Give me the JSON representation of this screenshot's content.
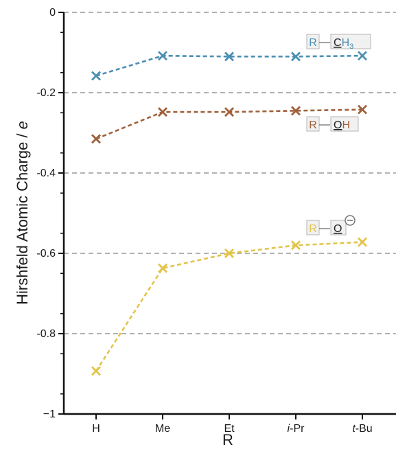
{
  "chart_data": {
    "type": "line",
    "categories": [
      "H",
      "Me",
      "Et",
      "i-Pr",
      "t-Bu"
    ],
    "category_labels": [
      {
        "prefix": "",
        "text": "H"
      },
      {
        "prefix": "",
        "text": "Me"
      },
      {
        "prefix": "",
        "text": "Et"
      },
      {
        "prefix": "i",
        "text": "-Pr"
      },
      {
        "prefix": "t",
        "text": "-Bu"
      }
    ],
    "ylim": [
      -1,
      0
    ],
    "yticks": [
      0,
      -0.2,
      -0.4,
      -0.6,
      -0.8,
      -1
    ],
    "ytick_labels": [
      "0",
      "-0.2",
      "-0.4",
      "-0.6",
      "-0.8",
      "−1"
    ],
    "xlabel": "R",
    "ylabel_main": "Hirshfeld Atomic Charge / ",
    "ylabel_unit": "e",
    "grid": "horizontal-dashed",
    "series": [
      {
        "key": "ch3",
        "values": [
          -0.158,
          -0.108,
          -0.11,
          -0.11,
          -0.108
        ],
        "color": "#4a8fb3",
        "label_parts": {
          "r": "R",
          "bond": "—",
          "atom": "C",
          "rest": "H",
          "sub": "3"
        }
      },
      {
        "key": "oh",
        "values": [
          -0.315,
          -0.248,
          -0.248,
          -0.245,
          -0.242
        ],
        "color": "#a0603a",
        "label_parts": {
          "r": "R",
          "bond": "—",
          "atom": "O",
          "rest": "H",
          "sub": ""
        }
      },
      {
        "key": "oanion",
        "values": [
          -0.893,
          -0.637,
          -0.6,
          -0.58,
          -0.572
        ],
        "color": "#e3c44a",
        "label_parts": {
          "r": "R",
          "bond": "—",
          "atom": "O",
          "rest": "",
          "sub": ""
        }
      }
    ],
    "axis_color": "#111111",
    "grid_color": "#999999"
  }
}
